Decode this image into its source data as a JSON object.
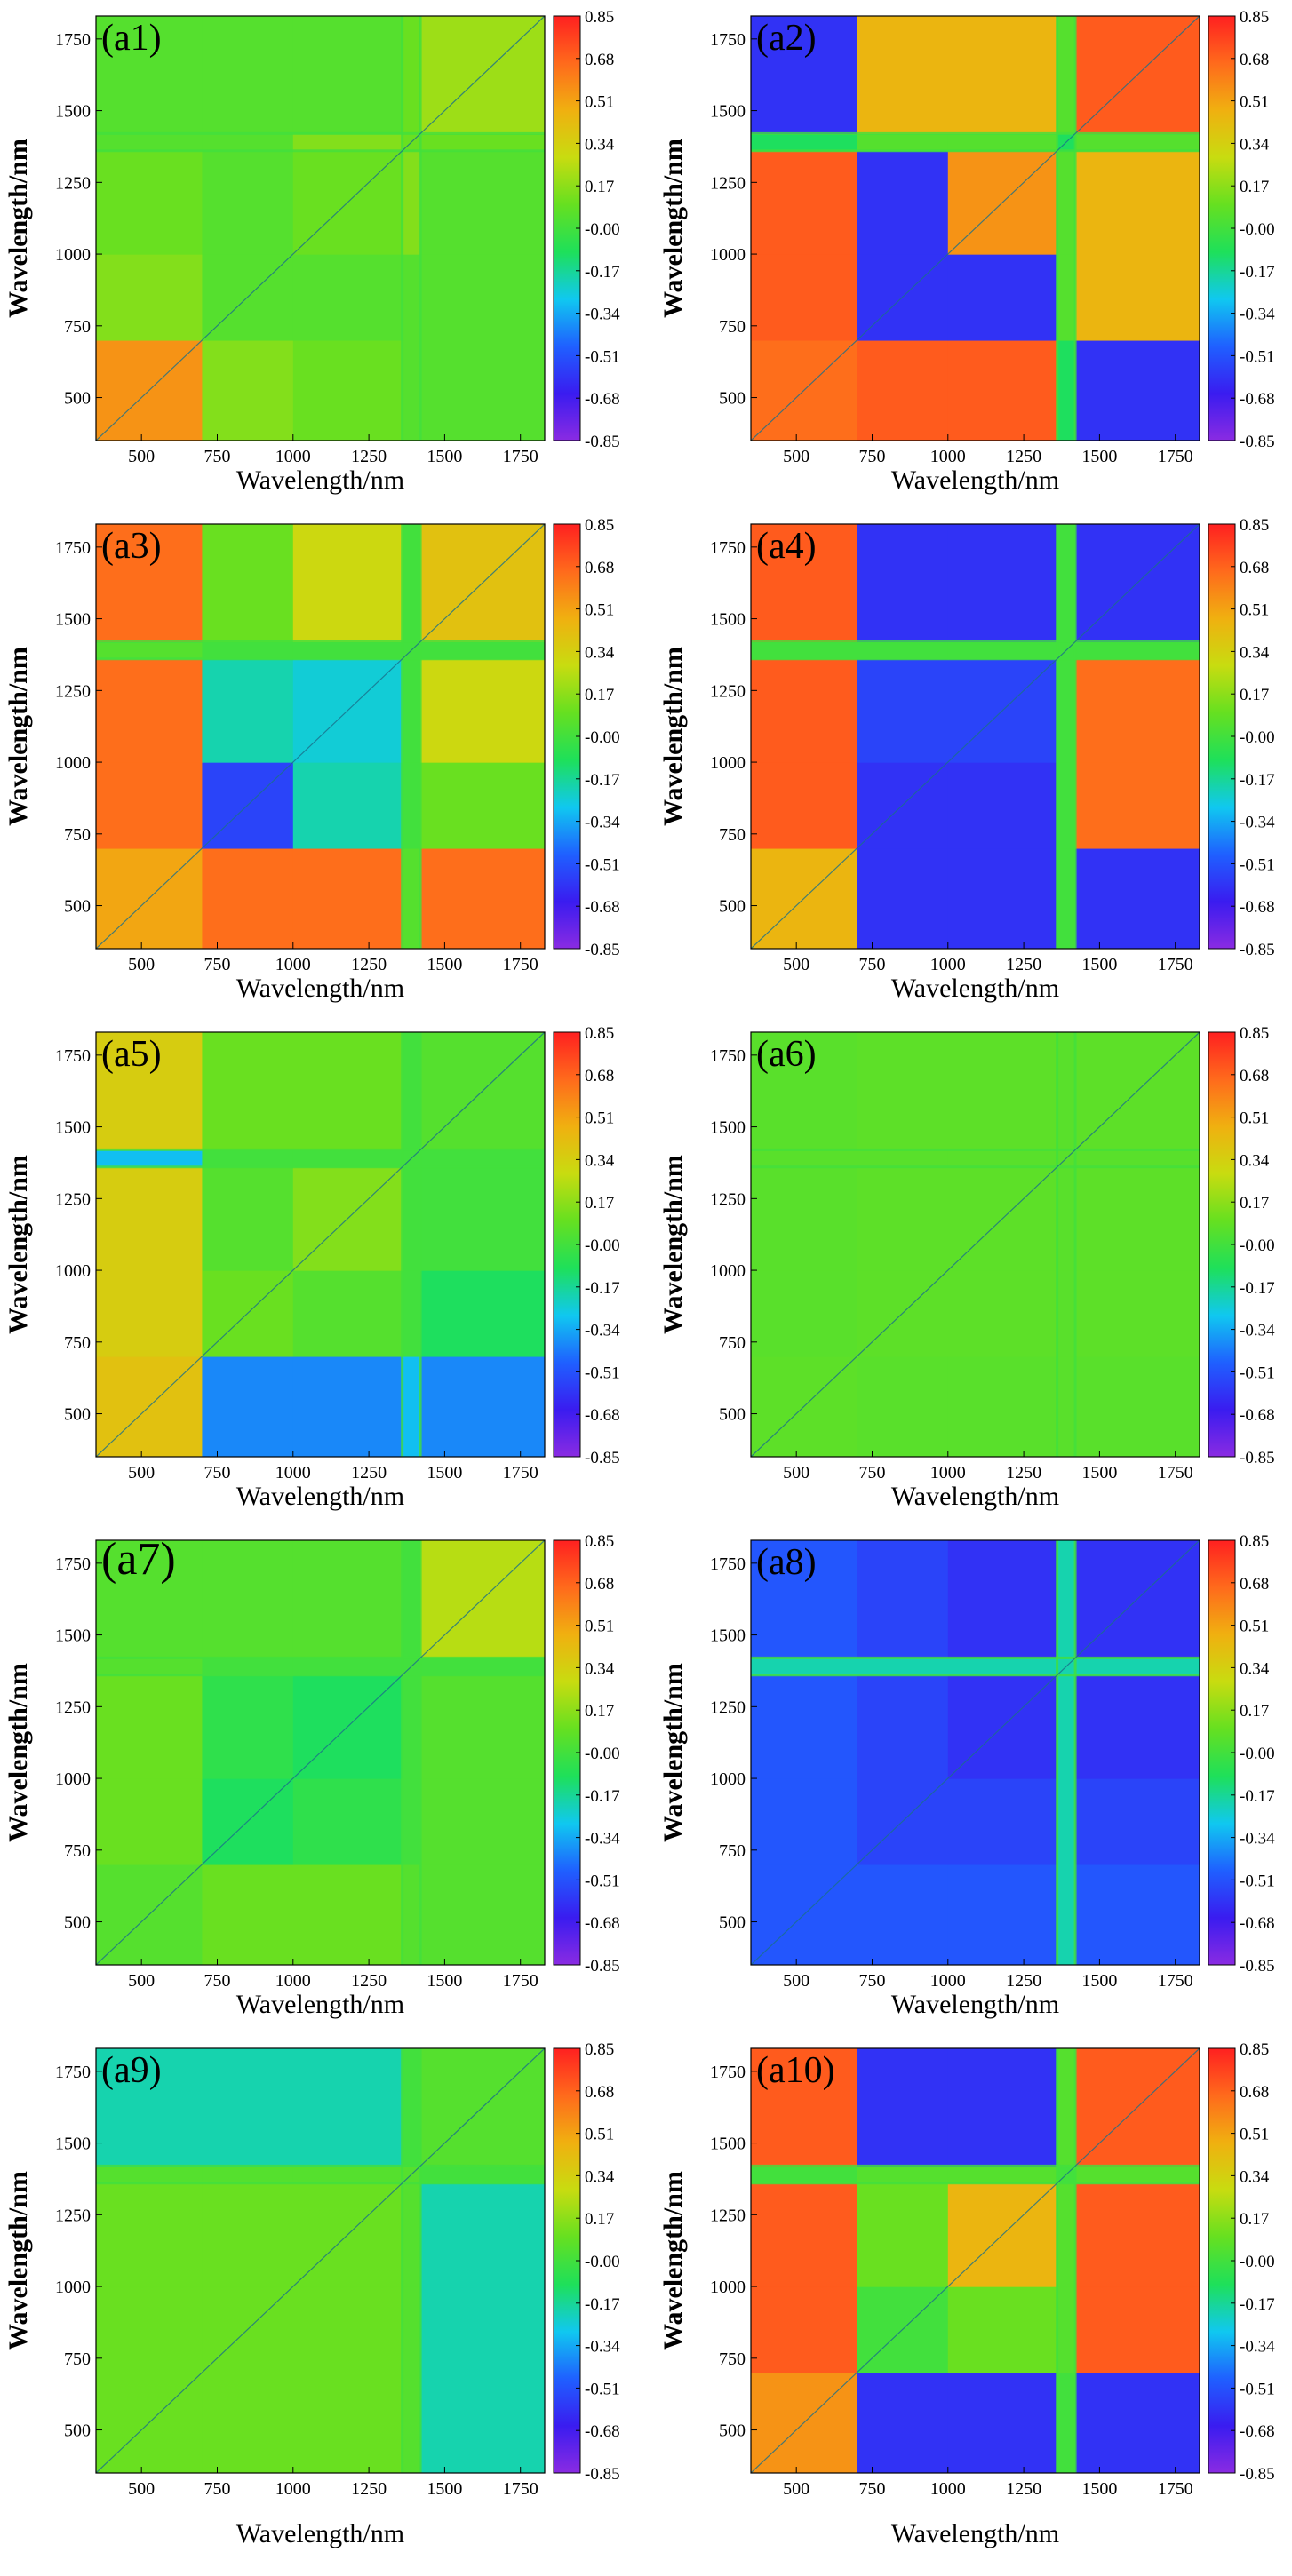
{
  "figure": {
    "colorbar": {
      "ticks": [
        "0.85",
        "0.68",
        "0.51",
        "0.34",
        "0.17",
        "-0.00",
        "-0.17",
        "-0.34",
        "-0.51",
        "-0.68",
        "-0.85"
      ],
      "range": [
        -0.85,
        0.85
      ],
      "colormap": [
        "#8a2be2",
        "#3a1cf0",
        "#1f60ff",
        "#10c8f0",
        "#1ee05a",
        "#66e020",
        "#c8dc10",
        "#f0b010",
        "#ff6a1c",
        "#ff2020"
      ]
    }
  },
  "chart_data": [
    {
      "type": "heatmap",
      "panel_label": "(a1)",
      "xlabel": "Wavelength/nm",
      "ylabel": "Wavelength/nm",
      "xlim": [
        350,
        1830
      ],
      "ylim": [
        350,
        1830
      ],
      "x_ticks": [
        "500",
        "750",
        "1000",
        "1250",
        "1500",
        "1750"
      ],
      "y_ticks": [
        "500",
        "750",
        "1000",
        "1250",
        "1500",
        "1750"
      ],
      "band_edges": [
        350,
        700,
        1000,
        1360,
        1420,
        1830
      ],
      "block_values": [
        [
          0.55,
          0.15,
          0.1,
          0.05,
          0.05
        ],
        [
          0.15,
          0.05,
          0.05,
          0.05,
          0.05
        ],
        [
          0.1,
          0.05,
          0.1,
          0.15,
          0.05
        ],
        [
          0.05,
          0.05,
          0.15,
          0.1,
          0.1
        ],
        [
          0.05,
          0.05,
          0.05,
          0.1,
          0.2
        ]
      ]
    },
    {
      "type": "heatmap",
      "panel_label": "(a2)",
      "xlabel": "Wavelength/nm",
      "ylabel": "Wavelength/nm",
      "xlim": [
        350,
        1830
      ],
      "ylim": [
        350,
        1830
      ],
      "x_ticks": [
        "500",
        "750",
        "1000",
        "1250",
        "1500",
        "1750"
      ],
      "y_ticks": [
        "500",
        "750",
        "1000",
        "1250",
        "1500",
        "1750"
      ],
      "band_edges": [
        350,
        700,
        1000,
        1360,
        1420,
        1830
      ],
      "block_values": [
        [
          0.65,
          0.7,
          0.7,
          -0.1,
          -0.6
        ],
        [
          0.7,
          -0.6,
          -0.6,
          0.05,
          0.45
        ],
        [
          0.7,
          -0.6,
          0.55,
          0.05,
          0.45
        ],
        [
          -0.1,
          0.05,
          0.05,
          -0.1,
          0.05
        ],
        [
          -0.6,
          0.45,
          0.45,
          0.05,
          0.7
        ]
      ]
    },
    {
      "type": "heatmap",
      "panel_label": "(a3)",
      "xlabel": "Wavelength/nm",
      "ylabel": "Wavelength/nm",
      "xlim": [
        350,
        1830
      ],
      "ylim": [
        350,
        1830
      ],
      "x_ticks": [
        "500",
        "750",
        "1000",
        "1250",
        "1500",
        "1750"
      ],
      "y_ticks": [
        "500",
        "750",
        "1000",
        "1250",
        "1500",
        "1750"
      ],
      "band_edges": [
        350,
        700,
        1000,
        1360,
        1420,
        1830
      ],
      "block_values": [
        [
          0.5,
          0.65,
          0.65,
          0.05,
          0.65
        ],
        [
          0.65,
          -0.55,
          -0.2,
          0.0,
          0.1
        ],
        [
          0.65,
          -0.2,
          -0.25,
          0.0,
          0.3
        ],
        [
          0.05,
          0.0,
          0.0,
          0.0,
          0.0
        ],
        [
          0.65,
          0.1,
          0.3,
          0.0,
          0.4
        ]
      ]
    },
    {
      "type": "heatmap",
      "panel_label": "(a4)",
      "xlabel": "Wavelength/nm",
      "ylabel": "Wavelength/nm",
      "xlim": [
        350,
        1830
      ],
      "ylim": [
        350,
        1830
      ],
      "x_ticks": [
        "500",
        "750",
        "1000",
        "1250",
        "1500",
        "1750"
      ],
      "y_ticks": [
        "500",
        "750",
        "1000",
        "1250",
        "1500",
        "1750"
      ],
      "band_edges": [
        350,
        700,
        1000,
        1360,
        1420,
        1830
      ],
      "block_values": [
        [
          0.45,
          -0.6,
          -0.6,
          0.0,
          -0.6
        ],
        [
          0.7,
          -0.6,
          -0.6,
          0.0,
          0.65
        ],
        [
          0.7,
          -0.55,
          -0.55,
          0.0,
          0.65
        ],
        [
          0.0,
          0.0,
          0.0,
          0.0,
          0.0
        ],
        [
          0.7,
          -0.6,
          -0.6,
          0.0,
          -0.6
        ]
      ]
    },
    {
      "type": "heatmap",
      "panel_label": "(a5)",
      "xlabel": "Wavelength/nm",
      "ylabel": "Wavelength/nm",
      "xlim": [
        350,
        1830
      ],
      "ylim": [
        350,
        1830
      ],
      "x_ticks": [
        "500",
        "750",
        "1000",
        "1250",
        "1500",
        "1750"
      ],
      "y_ticks": [
        "500",
        "750",
        "1000",
        "1250",
        "1500",
        "1750"
      ],
      "band_edges": [
        350,
        700,
        1000,
        1360,
        1420,
        1830
      ],
      "block_values": [
        [
          0.4,
          -0.4,
          -0.4,
          -0.3,
          -0.4
        ],
        [
          0.35,
          0.1,
          0.05,
          0.0,
          -0.1
        ],
        [
          0.35,
          0.05,
          0.15,
          0.0,
          0.0
        ],
        [
          -0.3,
          0.0,
          0.0,
          0.0,
          0.0
        ],
        [
          0.35,
          0.1,
          0.1,
          0.0,
          0.05
        ]
      ]
    },
    {
      "type": "heatmap",
      "panel_label": "(a6)",
      "xlabel": "Wavelength/nm",
      "ylabel": "Wavelength/nm",
      "xlim": [
        350,
        1830
      ],
      "ylim": [
        350,
        1830
      ],
      "x_ticks": [
        "500",
        "750",
        "1000",
        "1250",
        "1500",
        "1750"
      ],
      "y_ticks": [
        "500",
        "750",
        "1000",
        "1250",
        "1500",
        "1750"
      ],
      "band_edges": [
        350,
        700,
        1000,
        1360,
        1420,
        1830
      ],
      "block_values": [
        [
          0.07,
          0.06,
          0.06,
          0.06,
          0.06
        ],
        [
          0.06,
          0.07,
          0.07,
          0.06,
          0.07
        ],
        [
          0.06,
          0.07,
          0.07,
          0.06,
          0.07
        ],
        [
          0.06,
          0.06,
          0.06,
          0.06,
          0.06
        ],
        [
          0.06,
          0.07,
          0.07,
          0.06,
          0.07
        ]
      ]
    },
    {
      "type": "heatmap",
      "panel_label": "(a7)",
      "xlabel": "Wavelength/nm",
      "ylabel": "Wavelength/nm",
      "xlim": [
        350,
        1830
      ],
      "ylim": [
        350,
        1830
      ],
      "x_ticks": [
        "500",
        "750",
        "1000",
        "1250",
        "1500",
        "1750"
      ],
      "y_ticks": [
        "500",
        "750",
        "1000",
        "1250",
        "1500",
        "1750"
      ],
      "band_edges": [
        350,
        700,
        1000,
        1360,
        1420,
        1830
      ],
      "block_values": [
        [
          0.05,
          0.1,
          0.1,
          0.05,
          0.05
        ],
        [
          0.1,
          -0.1,
          -0.05,
          0.0,
          0.05
        ],
        [
          0.1,
          -0.05,
          -0.1,
          0.0,
          0.05
        ],
        [
          0.05,
          0.0,
          0.0,
          0.0,
          0.0
        ],
        [
          0.05,
          0.05,
          0.05,
          0.0,
          0.25
        ]
      ]
    },
    {
      "type": "heatmap",
      "panel_label": "(a8)",
      "xlabel": "Wavelength/nm",
      "ylabel": "Wavelength/nm",
      "xlim": [
        350,
        1830
      ],
      "ylim": [
        350,
        1830
      ],
      "x_ticks": [
        "500",
        "750",
        "1000",
        "1250",
        "1500",
        "1750"
      ],
      "y_ticks": [
        "500",
        "750",
        "1000",
        "1250",
        "1500",
        "1750"
      ],
      "band_edges": [
        350,
        700,
        1000,
        1360,
        1420,
        1830
      ],
      "block_values": [
        [
          -0.5,
          -0.5,
          -0.5,
          -0.2,
          -0.5
        ],
        [
          -0.5,
          -0.55,
          -0.55,
          -0.2,
          -0.55
        ],
        [
          -0.5,
          -0.55,
          -0.6,
          -0.2,
          -0.6
        ],
        [
          -0.2,
          -0.2,
          -0.2,
          -0.2,
          -0.2
        ],
        [
          -0.5,
          -0.55,
          -0.6,
          -0.2,
          -0.6
        ]
      ]
    },
    {
      "type": "heatmap",
      "panel_label": "(a9)",
      "xlabel": "Wavelength/nm",
      "ylabel": "Wavelength/nm",
      "xlim": [
        350,
        1830
      ],
      "ylim": [
        350,
        1830
      ],
      "x_ticks": [
        "500",
        "750",
        "1000",
        "1250",
        "1500",
        "1750"
      ],
      "y_ticks": [
        "500",
        "750",
        "1000",
        "1250",
        "1500",
        "1750"
      ],
      "band_edges": [
        350,
        700,
        1000,
        1360,
        1420,
        1830
      ],
      "block_values": [
        [
          0.1,
          0.1,
          0.1,
          0.05,
          -0.2
        ],
        [
          0.1,
          0.1,
          0.1,
          0.05,
          -0.2
        ],
        [
          0.1,
          0.1,
          0.1,
          0.05,
          -0.2
        ],
        [
          0.05,
          0.05,
          0.05,
          0.05,
          0.0
        ],
        [
          -0.2,
          -0.2,
          -0.2,
          0.0,
          0.05
        ]
      ]
    },
    {
      "type": "heatmap",
      "panel_label": "(a10)",
      "xlabel": "Wavelength/nm",
      "ylabel": "Wavelength/nm",
      "xlim": [
        350,
        1830
      ],
      "ylim": [
        350,
        1830
      ],
      "x_ticks": [
        "500",
        "750",
        "1000",
        "1250",
        "1500",
        "1750"
      ],
      "y_ticks": [
        "500",
        "750",
        "1000",
        "1250",
        "1500",
        "1750"
      ],
      "band_edges": [
        350,
        700,
        1000,
        1360,
        1420,
        1830
      ],
      "block_values": [
        [
          0.55,
          -0.6,
          -0.6,
          0.0,
          -0.6
        ],
        [
          0.7,
          0.0,
          0.1,
          0.05,
          0.7
        ],
        [
          0.7,
          0.1,
          0.45,
          0.05,
          0.7
        ],
        [
          0.0,
          0.05,
          0.05,
          0.0,
          0.05
        ],
        [
          0.7,
          -0.6,
          -0.6,
          0.05,
          0.7
        ]
      ]
    }
  ]
}
